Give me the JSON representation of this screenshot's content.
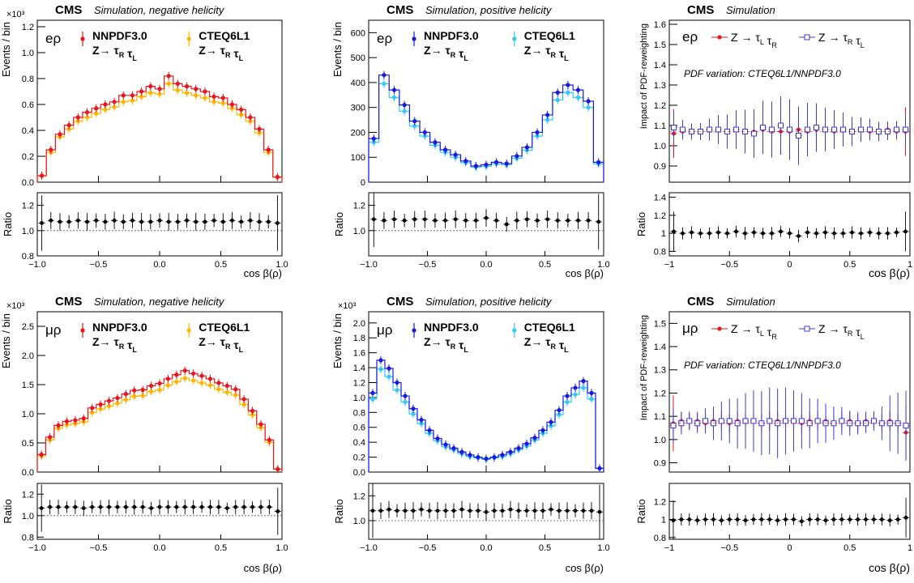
{
  "colors": {
    "nnpdf_neg": "#e8141e",
    "cteq_neg": "#ffb400",
    "nnpdf_pos": "#1a1adf",
    "cteq_pos": "#33c8f5",
    "open_marker": "#3b3bd8",
    "ratio": "#000000"
  },
  "rows": [
    {
      "channel": "eρ",
      "panels": [
        {
          "id": "neg",
          "cms": "CMS",
          "subtitle": "Simulation, negative helicity",
          "exponent": "×10³",
          "ylabel": "Events / bin",
          "ratio_label": "Ratio",
          "xlabel": "cos β(ρ)",
          "legend": [
            {
              "name": "NNPDF3.0",
              "process": "Z→ τ_R τ_L",
              "color_key": "nnpdf_neg"
            },
            {
              "name": "CTEQ6L1",
              "process": "Z→ τ_R τ_L",
              "color_key": "cteq_neg"
            }
          ]
        },
        {
          "id": "pos",
          "cms": "CMS",
          "subtitle": "Simulation, positive helicity",
          "exponent": "",
          "ylabel": "Events / bin",
          "ratio_label": "Ratio",
          "xlabel": "cos β(ρ)",
          "legend": [
            {
              "name": "NNPDF3.0",
              "process": "Z→ τ_R τ_L",
              "color_key": "nnpdf_pos"
            },
            {
              "name": "CTEQ6L1",
              "process": "Z→ τ_R τ_L",
              "color_key": "cteq_pos"
            }
          ]
        },
        {
          "id": "imp",
          "cms": "CMS",
          "subtitle": "Simulation",
          "ylabel": "Impact of PDF-reweighting",
          "ratio_label": "Ratio",
          "xlabel": "cos β(ρ)",
          "note": "PDF variation: CTEQ6L1/NNPDF3.0",
          "legend": [
            {
              "name": "Z → τ_L τ_R",
              "color_key": "nnpdf_neg"
            },
            {
              "name": "Z → τ_R τ_L",
              "color_key": "open_marker"
            }
          ]
        }
      ]
    },
    {
      "channel": "μρ",
      "panels": [
        {
          "id": "neg",
          "cms": "CMS",
          "subtitle": "Simulation, negative helicity",
          "exponent": "×10³",
          "ylabel": "Events / bin",
          "ratio_label": "Ratio",
          "xlabel": "cos β(ρ)",
          "legend": [
            {
              "name": "NNPDF3.0",
              "process": "Z→ τ_R τ_L",
              "color_key": "nnpdf_neg"
            },
            {
              "name": "CTEQ6L1",
              "process": "Z→ τ_R τ_L",
              "color_key": "cteq_neg"
            }
          ]
        },
        {
          "id": "pos",
          "cms": "CMS",
          "subtitle": "Simulation, positive helicity",
          "exponent": "×10³",
          "ylabel": "Events / bin",
          "ratio_label": "Ratio",
          "xlabel": "cos β(ρ)",
          "legend": [
            {
              "name": "NNPDF3.0",
              "process": "Z→ τ_R τ_L",
              "color_key": "nnpdf_pos"
            },
            {
              "name": "CTEQ6L1",
              "process": "Z→ τ_R τ_L",
              "color_key": "cteq_pos"
            }
          ]
        },
        {
          "id": "imp",
          "cms": "CMS",
          "subtitle": "Simulation",
          "ylabel": "Impact of PDF-reweighting",
          "ratio_label": "Ratio",
          "xlabel": "cos β(ρ)",
          "note": "PDF variation: CTEQ6L1/NNPDF3.0",
          "legend": [
            {
              "name": "Z → τ_L τ_R",
              "color_key": "nnpdf_neg"
            },
            {
              "name": "Z → τ_R τ_L",
              "color_key": "open_marker"
            }
          ]
        }
      ]
    }
  ],
  "chart_data": [
    {
      "type": "line",
      "channel": "eρ",
      "title": "Simulation, negative helicity",
      "xlabel": "cos β(ρ)",
      "ylabel": "Events / bin",
      "xlim": [
        -1,
        1
      ],
      "ylim": [
        0,
        1.25
      ],
      "yticks": [
        0,
        0.2,
        0.4,
        0.6,
        0.8,
        1.0,
        1.2
      ],
      "xticks": [
        -1.0,
        -0.5,
        0.0,
        0.5,
        1.0
      ],
      "series": [
        {
          "name": "NNPDF3.0",
          "values": [
            0.05,
            0.25,
            0.37,
            0.44,
            0.5,
            0.54,
            0.57,
            0.6,
            0.62,
            0.67,
            0.67,
            0.7,
            0.74,
            0.72,
            0.82,
            0.76,
            0.74,
            0.72,
            0.7,
            0.66,
            0.65,
            0.6,
            0.56,
            0.5,
            0.41,
            0.25,
            0.04
          ]
        },
        {
          "name": "CTEQ6L1",
          "values": [
            0.05,
            0.23,
            0.35,
            0.41,
            0.47,
            0.5,
            0.53,
            0.56,
            0.58,
            0.62,
            0.63,
            0.66,
            0.69,
            0.68,
            0.76,
            0.71,
            0.69,
            0.67,
            0.65,
            0.62,
            0.61,
            0.57,
            0.52,
            0.47,
            0.38,
            0.23,
            0.04
          ]
        }
      ],
      "ratio": {
        "ylim": [
          0.8,
          1.3
        ],
        "yticks": [
          0.8,
          1.0,
          1.2
        ],
        "values": [
          1.06,
          1.08,
          1.07,
          1.07,
          1.08,
          1.07,
          1.08,
          1.07,
          1.08,
          1.07,
          1.08,
          1.07,
          1.07,
          1.08,
          1.07,
          1.07,
          1.08,
          1.07,
          1.07,
          1.08,
          1.07,
          1.08,
          1.07,
          1.08,
          1.07,
          1.07,
          1.06
        ]
      }
    },
    {
      "type": "line",
      "channel": "eρ",
      "title": "Simulation, positive helicity",
      "xlabel": "cos β(ρ)",
      "ylabel": "Events / bin",
      "xlim": [
        -1,
        1
      ],
      "ylim": [
        0,
        650
      ],
      "yticks": [
        0,
        100,
        200,
        300,
        400,
        500,
        600
      ],
      "xticks": [
        -1.0,
        -0.5,
        0.0,
        0.5,
        1.0
      ],
      "series": [
        {
          "name": "NNPDF3.0",
          "values": [
            175,
            430,
            370,
            310,
            245,
            200,
            160,
            130,
            110,
            85,
            65,
            70,
            80,
            75,
            105,
            140,
            200,
            270,
            360,
            390,
            370,
            325,
            80
          ]
        },
        {
          "name": "CTEQ6L1",
          "values": [
            160,
            395,
            340,
            285,
            225,
            185,
            148,
            120,
            100,
            78,
            60,
            64,
            74,
            70,
            96,
            128,
            185,
            250,
            330,
            360,
            340,
            300,
            74
          ]
        }
      ],
      "ratio": {
        "ylim": [
          0.8,
          1.3
        ],
        "yticks": [
          1.0,
          1.2
        ],
        "values": [
          1.09,
          1.08,
          1.09,
          1.08,
          1.09,
          1.09,
          1.08,
          1.08,
          1.09,
          1.08,
          1.08,
          1.1,
          1.08,
          1.05,
          1.08,
          1.09,
          1.08,
          1.09,
          1.08,
          1.08,
          1.08,
          1.08,
          1.07
        ]
      }
    },
    {
      "type": "scatter",
      "channel": "eρ",
      "title": "Simulation",
      "xlabel": "cos β(ρ)",
      "ylabel": "Impact of PDF-reweighting",
      "note": "PDF variation: CTEQ6L1/NNPDF3.0",
      "xlim": [
        -1,
        1
      ],
      "ylim": [
        0.82,
        1.62
      ],
      "yticks": [
        0.9,
        1.0,
        1.1,
        1.2,
        1.3,
        1.4,
        1.5,
        1.6
      ],
      "xticks": [
        -1,
        -0.5,
        0,
        0.5,
        1
      ],
      "series": [
        {
          "name": "Z → τ_L τ_R",
          "values": [
            1.06,
            1.07,
            1.07,
            1.07,
            1.08,
            1.08,
            1.07,
            1.08,
            1.07,
            1.07,
            1.08,
            1.07,
            1.07,
            1.07,
            1.08,
            1.07,
            1.08,
            1.08,
            1.07,
            1.08,
            1.07,
            1.08,
            1.07,
            1.07,
            1.08,
            1.07,
            1.07
          ]
        },
        {
          "name": "Z → τ_R τ_L",
          "values": [
            1.09,
            1.08,
            1.07,
            1.07,
            1.08,
            1.08,
            1.07,
            1.08,
            1.07,
            1.06,
            1.09,
            1.08,
            1.1,
            1.08,
            1.05,
            1.08,
            1.09,
            1.08,
            1.08,
            1.08,
            1.07,
            1.08,
            1.08,
            1.07,
            1.07,
            1.08,
            1.08
          ]
        }
      ],
      "ratio": {
        "ylim": [
          0.75,
          1.45
        ],
        "yticks": [
          0.8,
          1.0,
          1.2,
          1.4
        ],
        "values": [
          1.02,
          1.0,
          1.01,
          1.0,
          1.0,
          1.01,
          1.0,
          1.02,
          1.0,
          1.01,
          1.0,
          1.0,
          1.02,
          1.0,
          0.97,
          1.01,
          1.0,
          1.01,
          1.0,
          1.0,
          1.01,
          1.0,
          1.01,
          1.0,
          1.0,
          1.01,
          1.02
        ]
      }
    },
    {
      "type": "line",
      "channel": "μρ",
      "title": "Simulation, negative helicity",
      "xlabel": "cos β(ρ)",
      "ylabel": "Events / bin",
      "xlim": [
        -1,
        1
      ],
      "ylim": [
        0,
        2.75
      ],
      "yticks": [
        0,
        0.5,
        1.0,
        1.5,
        2.0,
        2.5
      ],
      "xticks": [
        -1.0,
        -0.5,
        0.0,
        0.5,
        1.0
      ],
      "series": [
        {
          "name": "NNPDF3.0",
          "values": [
            0.3,
            0.6,
            0.8,
            0.87,
            0.89,
            0.92,
            1.1,
            1.16,
            1.22,
            1.27,
            1.34,
            1.4,
            1.41,
            1.48,
            1.52,
            1.6,
            1.67,
            1.74,
            1.69,
            1.65,
            1.6,
            1.53,
            1.48,
            1.42,
            1.25,
            1.05,
            0.82,
            0.55,
            0.05
          ]
        },
        {
          "name": "CTEQ6L1",
          "values": [
            0.28,
            0.55,
            0.75,
            0.81,
            0.83,
            0.86,
            1.02,
            1.08,
            1.13,
            1.18,
            1.24,
            1.3,
            1.31,
            1.38,
            1.41,
            1.49,
            1.55,
            1.61,
            1.57,
            1.53,
            1.49,
            1.42,
            1.37,
            1.32,
            1.16,
            0.98,
            0.76,
            0.51,
            0.05
          ]
        }
      ],
      "ratio": {
        "ylim": [
          0.78,
          1.3
        ],
        "yticks": [
          0.8,
          1.0,
          1.2
        ],
        "values": [
          1.07,
          1.08,
          1.08,
          1.08,
          1.08,
          1.07,
          1.08,
          1.08,
          1.08,
          1.08,
          1.08,
          1.08,
          1.08,
          1.07,
          1.08,
          1.08,
          1.08,
          1.08,
          1.08,
          1.08,
          1.08,
          1.08,
          1.07,
          1.08,
          1.08,
          1.08,
          1.08,
          1.08,
          1.04
        ]
      }
    },
    {
      "type": "line",
      "channel": "μρ",
      "title": "Simulation, positive helicity",
      "xlabel": "cos β(ρ)",
      "ylabel": "Events / bin",
      "xlim": [
        -1,
        1
      ],
      "ylim": [
        0,
        2.15
      ],
      "yticks": [
        0,
        0.2,
        0.4,
        0.6,
        0.8,
        1.0,
        1.2,
        1.4,
        1.6,
        1.8,
        2.0
      ],
      "xticks": [
        -1.0,
        -0.5,
        0.0,
        0.5,
        1.0
      ],
      "series": [
        {
          "name": "NNPDF3.0",
          "values": [
            1.06,
            1.5,
            1.39,
            1.2,
            1.02,
            0.85,
            0.7,
            0.56,
            0.45,
            0.37,
            0.32,
            0.27,
            0.23,
            0.2,
            0.18,
            0.2,
            0.23,
            0.27,
            0.32,
            0.38,
            0.46,
            0.56,
            0.67,
            0.83,
            1.02,
            1.13,
            1.22,
            1.06,
            0.05
          ]
        },
        {
          "name": "CTEQ6L1",
          "values": [
            0.98,
            1.38,
            1.28,
            1.1,
            0.94,
            0.78,
            0.65,
            0.52,
            0.42,
            0.34,
            0.3,
            0.25,
            0.21,
            0.19,
            0.17,
            0.19,
            0.21,
            0.25,
            0.3,
            0.35,
            0.43,
            0.52,
            0.62,
            0.77,
            0.94,
            1.04,
            1.13,
            0.98,
            0.05
          ]
        }
      ],
      "ratio": {
        "ylim": [
          0.85,
          1.3
        ],
        "yticks": [
          1.0,
          1.2
        ],
        "values": [
          1.08,
          1.08,
          1.09,
          1.08,
          1.08,
          1.08,
          1.09,
          1.08,
          1.08,
          1.08,
          1.08,
          1.09,
          1.08,
          1.08,
          1.07,
          1.08,
          1.08,
          1.09,
          1.08,
          1.08,
          1.08,
          1.08,
          1.09,
          1.08,
          1.08,
          1.08,
          1.08,
          1.08,
          1.07
        ]
      }
    },
    {
      "type": "scatter",
      "channel": "μρ",
      "title": "Simulation",
      "xlabel": "cos β(ρ)",
      "ylabel": "Impact of PDF-reweighting",
      "note": "PDF variation: CTEQ6L1/NNPDF3.0",
      "xlim": [
        -1,
        1
      ],
      "ylim": [
        0.86,
        1.55
      ],
      "yticks": [
        0.9,
        1.0,
        1.1,
        1.2,
        1.3,
        1.4,
        1.5
      ],
      "xticks": [
        -1,
        -0.5,
        0,
        0.5,
        1
      ],
      "series": [
        {
          "name": "Z → τ_L τ_R",
          "values": [
            1.07,
            1.08,
            1.08,
            1.08,
            1.07,
            1.08,
            1.08,
            1.07,
            1.08,
            1.08,
            1.08,
            1.07,
            1.08,
            1.08,
            1.08,
            1.08,
            1.07,
            1.08,
            1.08,
            1.08,
            1.07,
            1.08,
            1.08,
            1.07,
            1.08,
            1.08,
            1.07,
            1.08,
            1.07,
            1.03
          ]
        },
        {
          "name": "Z → τ_R τ_L",
          "values": [
            1.06,
            1.07,
            1.08,
            1.07,
            1.08,
            1.07,
            1.08,
            1.08,
            1.07,
            1.08,
            1.08,
            1.07,
            1.08,
            1.07,
            1.08,
            1.08,
            1.08,
            1.07,
            1.08,
            1.07,
            1.07,
            1.08,
            1.07,
            1.07,
            1.07,
            1.08,
            1.07,
            1.07,
            1.07,
            1.06
          ]
        }
      ],
      "ratio": {
        "ylim": [
          0.78,
          1.4
        ],
        "yticks": [
          0.8,
          1.0,
          1.2
        ],
        "values": [
          0.99,
          1.0,
          1.0,
          0.99,
          1.0,
          1.0,
          0.99,
          1.0,
          1.0,
          0.99,
          1.0,
          1.0,
          1.0,
          0.99,
          1.0,
          1.0,
          0.98,
          1.0,
          1.0,
          0.99,
          1.0,
          1.0,
          1.0,
          1.0,
          1.0,
          1.0,
          1.0,
          0.99,
          1.0,
          1.02
        ]
      }
    }
  ]
}
